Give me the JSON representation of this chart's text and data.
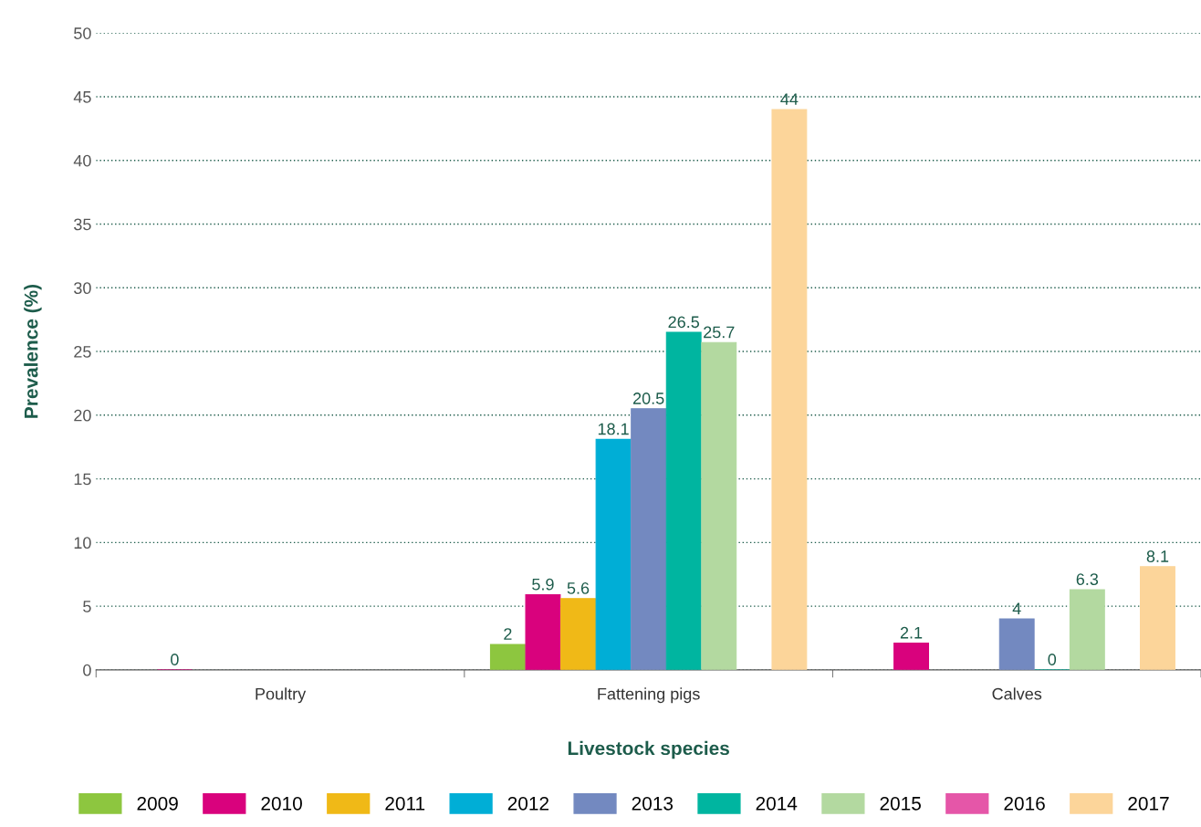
{
  "chart_data": {
    "type": "bar",
    "xlabel": "Livestock species",
    "ylabel": "Prevalence (%)",
    "categories": [
      "Poultry",
      "Fattening pigs",
      "Calves"
    ],
    "series": [
      {
        "name": "2009",
        "color": "#8dc63f",
        "values": [
          null,
          2,
          null
        ]
      },
      {
        "name": "2010",
        "color": "#d9027d",
        "values": [
          0,
          5.9,
          2.1
        ]
      },
      {
        "name": "2011",
        "color": "#f0b917",
        "values": [
          null,
          5.6,
          null
        ]
      },
      {
        "name": "2012",
        "color": "#00aed6",
        "values": [
          null,
          18.1,
          null
        ]
      },
      {
        "name": "2013",
        "color": "#7389c0",
        "values": [
          null,
          20.5,
          4
        ]
      },
      {
        "name": "2014",
        "color": "#00b5a0",
        "values": [
          null,
          26.5,
          0
        ]
      },
      {
        "name": "2015",
        "color": "#b3d9a0",
        "values": [
          null,
          25.7,
          6.3
        ]
      },
      {
        "name": "2016",
        "color": "#e556a8",
        "values": [
          null,
          null,
          null
        ]
      },
      {
        "name": "2017",
        "color": "#fcd59a",
        "values": [
          null,
          44,
          8.1
        ]
      }
    ],
    "ylim": [
      0,
      50
    ],
    "yticks": [
      0,
      5,
      10,
      15,
      20,
      25,
      30,
      35,
      40,
      45,
      50
    ],
    "grid": "y",
    "legend": "bottom",
    "data_labels": true
  }
}
